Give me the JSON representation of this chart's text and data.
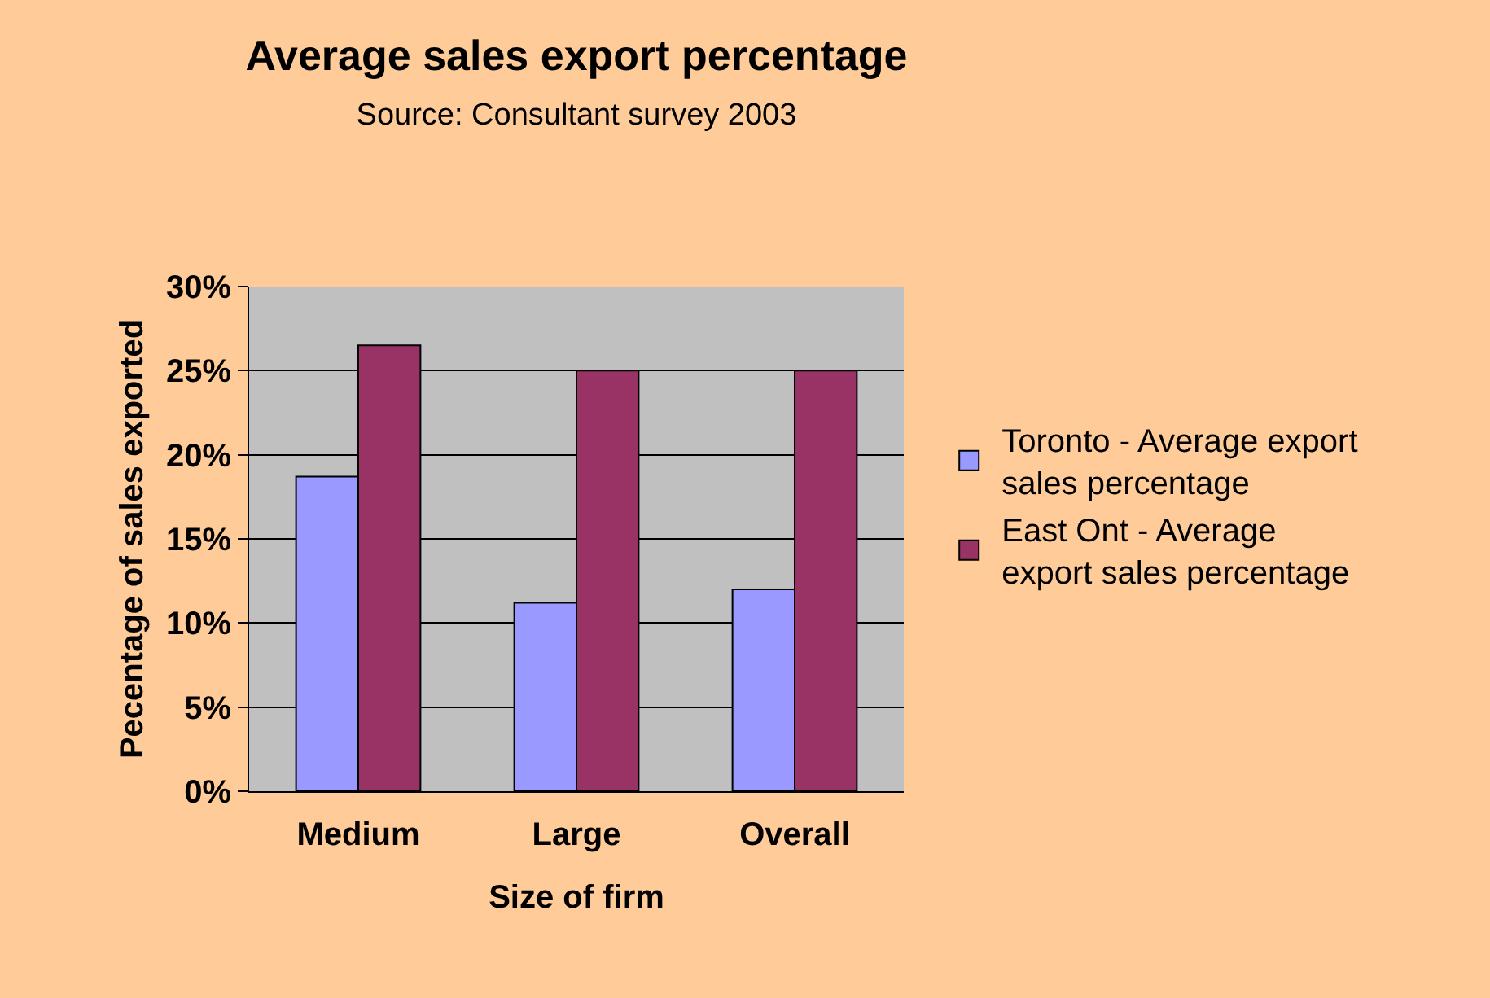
{
  "chart_data": {
    "type": "bar",
    "title": "Average sales export percentage",
    "subtitle": "Source: Consultant survey 2003",
    "xlabel": "Size of firm",
    "ylabel": "Pecentage of sales exported",
    "categories": [
      "Medium",
      "Large",
      "Overall"
    ],
    "series": [
      {
        "name": "Toronto - Average export sales percentage",
        "color": "#9999ff",
        "values": [
          18.7,
          11.2,
          12.0
        ]
      },
      {
        "name": "East Ont - Average export sales percentage",
        "color": "#993366",
        "values": [
          26.5,
          25.0,
          25.0
        ]
      }
    ],
    "ylim": [
      0,
      30
    ],
    "yticks": [
      {
        "value": 0,
        "label": "0%"
      },
      {
        "value": 5,
        "label": "5%"
      },
      {
        "value": 10,
        "label": "10%"
      },
      {
        "value": 15,
        "label": "15%"
      },
      {
        "value": 20,
        "label": "20%"
      },
      {
        "value": 25,
        "label": "25%"
      },
      {
        "value": 30,
        "label": "30%"
      }
    ],
    "grid": "y",
    "legend": "right"
  }
}
